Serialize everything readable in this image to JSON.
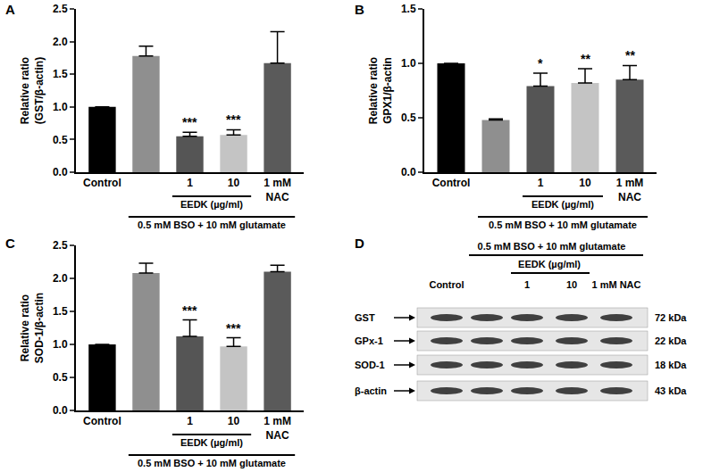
{
  "chart_data": [
    {
      "type": "bar",
      "panel": "A",
      "ylabel": [
        "Relative ratio",
        "(GST/β-actin)"
      ],
      "categories": [
        "Control",
        null,
        "1",
        "10",
        "1 mM NAC"
      ],
      "values": [
        1.0,
        1.78,
        0.55,
        0.57,
        1.67
      ],
      "errors": [
        null,
        0.15,
        0.06,
        0.08,
        0.48
      ],
      "significance": [
        null,
        null,
        "***",
        "***",
        null
      ],
      "colors": [
        "#000000",
        "#8f8f8f",
        "#555555",
        "#c4c4c4",
        "#5a5a5a"
      ],
      "ylim": [
        0,
        2.5
      ],
      "yticks": [
        {
          "value": 0,
          "label": "0.0"
        },
        {
          "value": 0.5,
          "label": "0.5"
        },
        {
          "value": 1,
          "label": "1.0"
        },
        {
          "value": 1.5,
          "label": "1.5"
        },
        {
          "value": 2,
          "label": "2.0"
        },
        {
          "value": 2.5,
          "label": "2.5"
        }
      ],
      "groups": [
        {
          "label": "EEDK (µg/ml)",
          "span": [
            2,
            3
          ]
        },
        {
          "label": "0.5 mM BSO + 10 mM glutamate",
          "span": [
            1,
            4
          ]
        }
      ],
      "grid": false
    },
    {
      "type": "bar",
      "panel": "B",
      "ylabel": [
        "Relative ratio",
        "GPX1/β-actin"
      ],
      "categories": [
        "Control",
        null,
        "1",
        "10",
        "1 mM NAC"
      ],
      "values": [
        1.0,
        0.48,
        0.79,
        0.82,
        0.85
      ],
      "errors": [
        null,
        0.01,
        0.12,
        0.13,
        0.13
      ],
      "significance": [
        null,
        null,
        "*",
        "**",
        "**"
      ],
      "colors": [
        "#000000",
        "#8f8f8f",
        "#555555",
        "#c4c4c4",
        "#5a5a5a"
      ],
      "ylim": [
        0,
        1.5
      ],
      "yticks": [
        {
          "value": 0,
          "label": "0.0"
        },
        {
          "value": 0.5,
          "label": "0.5"
        },
        {
          "value": 1,
          "label": "1.0"
        },
        {
          "value": 1.5,
          "label": "1.5"
        }
      ],
      "groups": [
        {
          "label": "EEDK (µg/ml)",
          "span": [
            2,
            3
          ]
        },
        {
          "label": "0.5 mM BSO + 10 mM glutamate",
          "span": [
            1,
            4
          ]
        }
      ],
      "grid": false
    },
    {
      "type": "bar",
      "panel": "C",
      "ylabel": [
        "Relative ratio",
        "SOD-1/β-actin"
      ],
      "categories": [
        "Control",
        null,
        "1",
        "10",
        "1 mM NAC"
      ],
      "values": [
        1.0,
        2.08,
        1.12,
        0.97,
        2.1
      ],
      "errors": [
        null,
        0.15,
        0.25,
        0.13,
        0.1
      ],
      "significance": [
        null,
        null,
        "***",
        "***",
        null
      ],
      "colors": [
        "#000000",
        "#8f8f8f",
        "#555555",
        "#c4c4c4",
        "#5a5a5a"
      ],
      "ylim": [
        0,
        2.5
      ],
      "yticks": [
        {
          "value": 0,
          "label": "0.0"
        },
        {
          "value": 0.5,
          "label": "0.5"
        },
        {
          "value": 1,
          "label": "1.0"
        },
        {
          "value": 1.5,
          "label": "1.5"
        },
        {
          "value": 2,
          "label": "2.0"
        },
        {
          "value": 2.5,
          "label": "2.5"
        }
      ],
      "groups": [
        {
          "label": "EEDK (µg/ml)",
          "span": [
            2,
            3
          ]
        },
        {
          "label": "0.5 mM BSO + 10 mM glutamate",
          "span": [
            1,
            4
          ]
        }
      ],
      "grid": false
    }
  ],
  "blot": {
    "panel": "D",
    "header": "0.5 mM BSO + 10 mM glutamate",
    "subheader": "EEDK (µg/ml)",
    "lanes": [
      "Control",
      null,
      "1",
      "10",
      "1 mM NAC"
    ],
    "rows": [
      {
        "label": "GST",
        "size": "72 kDa"
      },
      {
        "label": "GPx-1",
        "size": "22 kDa"
      },
      {
        "label": "SOD-1",
        "size": "18 kDa"
      },
      {
        "label": "β-actin",
        "size": "43 kDa"
      }
    ]
  }
}
